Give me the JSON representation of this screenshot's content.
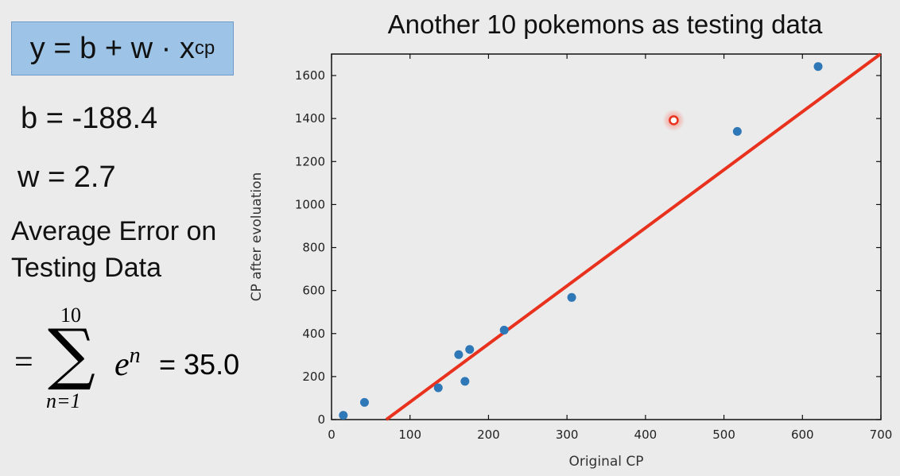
{
  "left_panel": {
    "model_formula": {
      "y": "y",
      "eq": "=",
      "b": "b",
      "plus": "+",
      "w": "w",
      "dot": "·",
      "x": "x",
      "sub": "cp"
    },
    "b_text": "b = -188.4",
    "w_text": "w = 2.7",
    "avg_error_line1": "Average Error on",
    "avg_error_line2": "Testing Data",
    "sum": {
      "eq": "=",
      "upper": "10",
      "sigma": "∑",
      "lower": "n=1",
      "term_base": "e",
      "term_sup": "n",
      "result": "= 35.0"
    }
  },
  "chart_data": {
    "type": "scatter",
    "title": "Another 10 pokemons as testing data",
    "xlabel": "Original CP",
    "ylabel": "CP after evoluation",
    "xlim": [
      0,
      700
    ],
    "ylim": [
      0,
      1700
    ],
    "xticks": [
      0,
      100,
      200,
      300,
      400,
      500,
      600,
      700
    ],
    "yticks": [
      0,
      200,
      400,
      600,
      800,
      1000,
      1200,
      1400,
      1600
    ],
    "points": [
      {
        "x": 15,
        "y": 20
      },
      {
        "x": 42,
        "y": 80
      },
      {
        "x": 136,
        "y": 148
      },
      {
        "x": 162,
        "y": 302
      },
      {
        "x": 170,
        "y": 178
      },
      {
        "x": 176,
        "y": 326
      },
      {
        "x": 220,
        "y": 416
      },
      {
        "x": 306,
        "y": 568
      },
      {
        "x": 517,
        "y": 1340
      },
      {
        "x": 620,
        "y": 1642
      }
    ],
    "highlighted_point": {
      "x": 436,
      "y": 1392
    },
    "line": {
      "b": -188.4,
      "w": 2.7
    },
    "colors": {
      "point": "#2f78b8",
      "line": "#e8321e",
      "highlight": "#e8321e"
    }
  }
}
